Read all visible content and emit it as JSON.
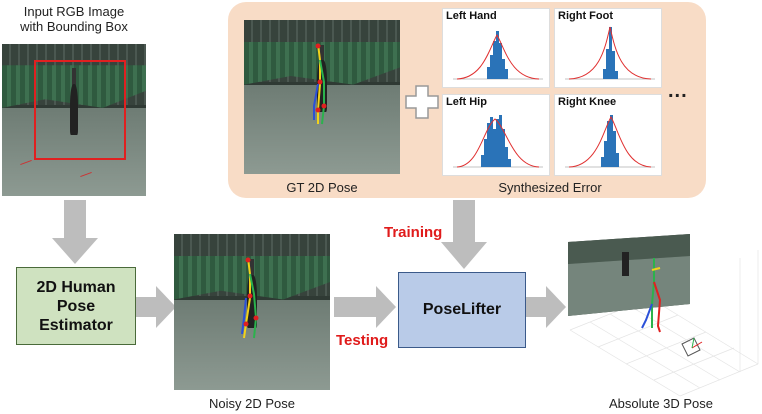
{
  "input_caption_line1": "Input RGB Image",
  "input_caption_line2": "with Bounding Box",
  "estimator_line1": "2D Human",
  "estimator_line2": "Pose",
  "estimator_line3": "Estimator",
  "noisy_caption": "Noisy 2D Pose",
  "gt_caption": "GT 2D Pose",
  "synth_caption": "Synthesized Error",
  "histograms": [
    {
      "title": "Left Hand"
    },
    {
      "title": "Right Foot"
    },
    {
      "title": "Left Hip"
    },
    {
      "title": "Right Knee"
    }
  ],
  "ellipsis": "...",
  "training_label": "Training",
  "testing_label": "Testing",
  "poselifter_label": "PoseLifter",
  "output_caption": "Absolute 3D Pose",
  "colors": {
    "panel": "#f8dcc6",
    "arrow": "#bdbdbd",
    "estimator_fill": "#cfe2c0",
    "poselifter_fill": "#b9cbe8",
    "accent_red": "#e01b1b",
    "hist_bar": "#2a73b8",
    "hist_curve": "#e03030"
  }
}
